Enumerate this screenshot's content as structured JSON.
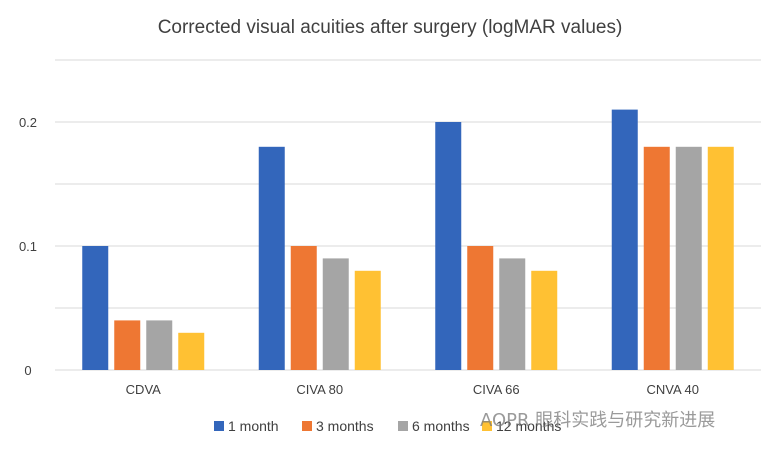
{
  "chart_data": {
    "type": "bar",
    "title": "Corrected visual acuities after surgery (logMAR values)",
    "categories": [
      "CDVA",
      "CIVA 80",
      "CIVA 66",
      "CNVA 40"
    ],
    "series": [
      {
        "name": "1 month",
        "color": "#3366bb",
        "values": [
          0.1,
          0.18,
          0.2,
          0.21
        ]
      },
      {
        "name": "3 months",
        "color": "#ee7733",
        "values": [
          0.04,
          0.1,
          0.1,
          0.18
        ]
      },
      {
        "name": "6 months",
        "color": "#a5a5a5",
        "values": [
          0.04,
          0.09,
          0.09,
          0.18
        ]
      },
      {
        "name": "12 months",
        "color": "#ffc133",
        "values": [
          0.03,
          0.08,
          0.08,
          0.18
        ]
      }
    ],
    "yticks": [
      "0",
      "0.1",
      "0.2"
    ],
    "ylim": [
      0,
      0.25
    ],
    "grid": true,
    "legend": "bottom"
  },
  "watermark": "AOPR 眼科实践与研究新进展"
}
